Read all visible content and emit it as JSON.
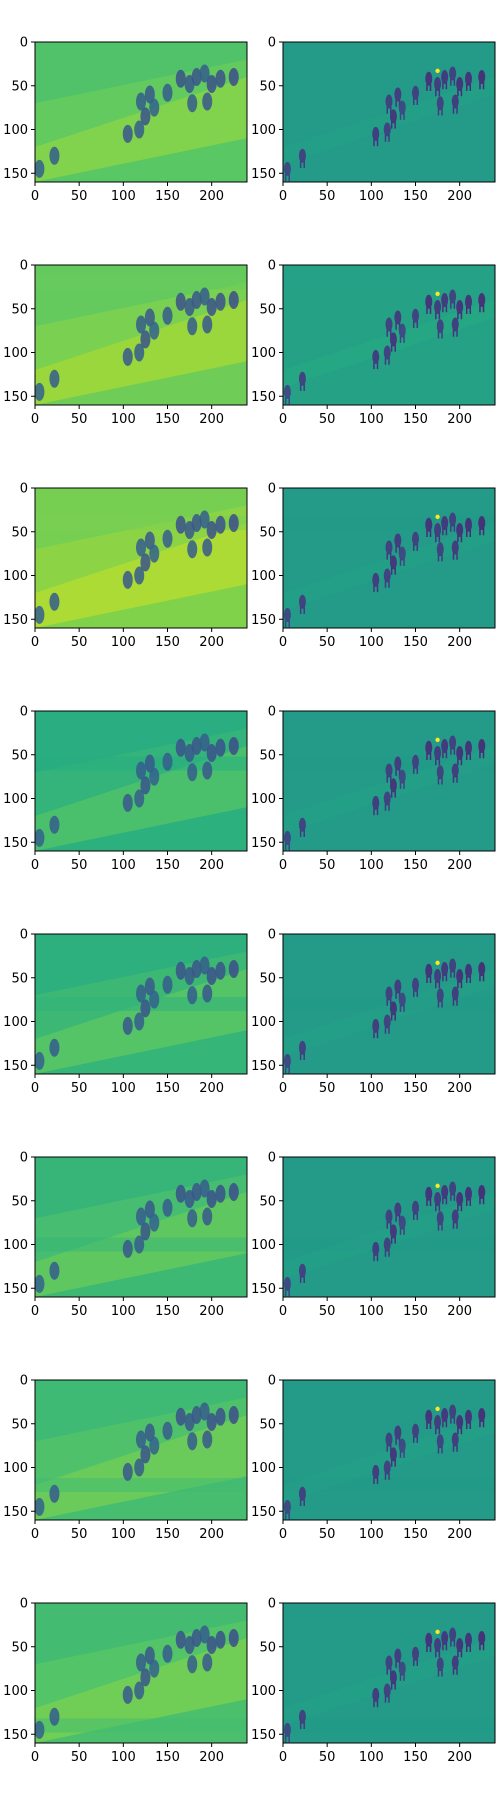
{
  "figure": {
    "rows": 8,
    "columns": 2
  },
  "chart_data": [
    {
      "type": "heatmap",
      "panel": "row-1-left",
      "colormap": "viridis",
      "mean_level": 0.76,
      "seam_row": null,
      "xlim": [
        0,
        240
      ],
      "ylim": [
        160,
        0
      ],
      "xticks": [
        0,
        50,
        100,
        150,
        200
      ],
      "yticks": [
        0,
        50,
        100,
        150
      ],
      "xtick_labels": [
        "0",
        "50",
        "100",
        "150",
        "200"
      ],
      "ytick_labels": [
        "0",
        "50",
        "100",
        "150"
      ]
    },
    {
      "type": "heatmap",
      "panel": "row-1-right",
      "colormap": "viridis",
      "mean_level": 0.55,
      "seam_row": null,
      "xlim": [
        0,
        240
      ],
      "ylim": [
        160,
        0
      ],
      "xticks": [
        0,
        50,
        100,
        150,
        200
      ],
      "yticks": [
        0,
        50,
        100,
        150
      ],
      "xtick_labels": [
        "0",
        "50",
        "100",
        "150",
        "200"
      ],
      "ytick_labels": [
        "0",
        "50",
        "100",
        "150"
      ]
    },
    {
      "type": "heatmap",
      "panel": "row-2-left",
      "colormap": "viridis",
      "mean_level": 0.8,
      "seam_row": 20,
      "xlim": [
        0,
        240
      ],
      "ylim": [
        160,
        0
      ],
      "xticks": [
        0,
        50,
        100,
        150,
        200
      ],
      "yticks": [
        0,
        50,
        100,
        150
      ],
      "xtick_labels": [
        "0",
        "50",
        "100",
        "150",
        "200"
      ],
      "ytick_labels": [
        "0",
        "50",
        "100",
        "150"
      ]
    },
    {
      "type": "heatmap",
      "panel": "row-2-right",
      "colormap": "viridis",
      "mean_level": 0.58,
      "seam_row": 20,
      "xlim": [
        0,
        240
      ],
      "ylim": [
        160,
        0
      ],
      "xticks": [
        0,
        50,
        100,
        150,
        200
      ],
      "yticks": [
        0,
        50,
        100,
        150
      ],
      "xtick_labels": [
        "0",
        "50",
        "100",
        "150",
        "200"
      ],
      "ytick_labels": [
        "0",
        "50",
        "100",
        "150"
      ]
    },
    {
      "type": "heatmap",
      "panel": "row-3-left",
      "colormap": "viridis",
      "mean_level": 0.83,
      "seam_row": 40,
      "xlim": [
        0,
        240
      ],
      "ylim": [
        160,
        0
      ],
      "xticks": [
        0,
        50,
        100,
        150,
        200
      ],
      "yticks": [
        0,
        50,
        100,
        150
      ],
      "xtick_labels": [
        "0",
        "50",
        "100",
        "150",
        "200"
      ],
      "ytick_labels": [
        "0",
        "50",
        "100",
        "150"
      ]
    },
    {
      "type": "heatmap",
      "panel": "row-3-right",
      "colormap": "viridis",
      "mean_level": 0.55,
      "seam_row": 40,
      "xlim": [
        0,
        240
      ],
      "ylim": [
        160,
        0
      ],
      "xticks": [
        0,
        50,
        100,
        150,
        200
      ],
      "yticks": [
        0,
        50,
        100,
        150
      ],
      "xtick_labels": [
        "0",
        "50",
        "100",
        "150",
        "200"
      ],
      "ytick_labels": [
        "0",
        "50",
        "100",
        "150"
      ]
    },
    {
      "type": "heatmap",
      "panel": "row-4-left",
      "colormap": "viridis",
      "mean_level": 0.66,
      "seam_row": 60,
      "xlim": [
        0,
        240
      ],
      "ylim": [
        160,
        0
      ],
      "xticks": [
        0,
        50,
        100,
        150,
        200
      ],
      "yticks": [
        0,
        50,
        100,
        150
      ],
      "xtick_labels": [
        "0",
        "50",
        "100",
        "150",
        "200"
      ],
      "ytick_labels": [
        "0",
        "50",
        "100",
        "150"
      ]
    },
    {
      "type": "heatmap",
      "panel": "row-4-right",
      "colormap": "viridis",
      "mean_level": 0.55,
      "seam_row": 60,
      "xlim": [
        0,
        240
      ],
      "ylim": [
        160,
        0
      ],
      "xticks": [
        0,
        50,
        100,
        150,
        200
      ],
      "yticks": [
        0,
        50,
        100,
        150
      ],
      "xtick_labels": [
        "0",
        "50",
        "100",
        "150",
        "200"
      ],
      "ytick_labels": [
        "0",
        "50",
        "100",
        "150"
      ]
    },
    {
      "type": "heatmap",
      "panel": "row-5-left",
      "colormap": "viridis",
      "mean_level": 0.68,
      "seam_row": 80,
      "xlim": [
        0,
        240
      ],
      "ylim": [
        160,
        0
      ],
      "xticks": [
        0,
        50,
        100,
        150,
        200
      ],
      "yticks": [
        0,
        50,
        100,
        150
      ],
      "xtick_labels": [
        "0",
        "50",
        "100",
        "150",
        "200"
      ],
      "ytick_labels": [
        "0",
        "50",
        "100",
        "150"
      ]
    },
    {
      "type": "heatmap",
      "panel": "row-5-right",
      "colormap": "viridis",
      "mean_level": 0.55,
      "seam_row": 80,
      "xlim": [
        0,
        240
      ],
      "ylim": [
        160,
        0
      ],
      "xticks": [
        0,
        50,
        100,
        150,
        200
      ],
      "yticks": [
        0,
        50,
        100,
        150
      ],
      "xtick_labels": [
        "0",
        "50",
        "100",
        "150",
        "200"
      ],
      "ytick_labels": [
        "0",
        "50",
        "100",
        "150"
      ]
    },
    {
      "type": "heatmap",
      "panel": "row-6-left",
      "colormap": "viridis",
      "mean_level": 0.7,
      "seam_row": 100,
      "xlim": [
        0,
        240
      ],
      "ylim": [
        160,
        0
      ],
      "xticks": [
        0,
        50,
        100,
        150,
        200
      ],
      "yticks": [
        0,
        50,
        100,
        150
      ],
      "xtick_labels": [
        "0",
        "50",
        "100",
        "150",
        "200"
      ],
      "ytick_labels": [
        "0",
        "50",
        "100",
        "150"
      ]
    },
    {
      "type": "heatmap",
      "panel": "row-6-right",
      "colormap": "viridis",
      "mean_level": 0.55,
      "seam_row": 100,
      "xlim": [
        0,
        240
      ],
      "ylim": [
        160,
        0
      ],
      "xticks": [
        0,
        50,
        100,
        150,
        200
      ],
      "yticks": [
        0,
        50,
        100,
        150
      ],
      "xtick_labels": [
        "0",
        "50",
        "100",
        "150",
        "200"
      ],
      "ytick_labels": [
        "0",
        "50",
        "100",
        "150"
      ]
    },
    {
      "type": "heatmap",
      "panel": "row-7-left",
      "colormap": "viridis",
      "mean_level": 0.72,
      "seam_row": 120,
      "xlim": [
        0,
        240
      ],
      "ylim": [
        160,
        0
      ],
      "xticks": [
        0,
        50,
        100,
        150,
        200
      ],
      "yticks": [
        0,
        50,
        100,
        150
      ],
      "xtick_labels": [
        "0",
        "50",
        "100",
        "150",
        "200"
      ],
      "ytick_labels": [
        "0",
        "50",
        "100",
        "150"
      ]
    },
    {
      "type": "heatmap",
      "panel": "row-7-right",
      "colormap": "viridis",
      "mean_level": 0.55,
      "seam_row": 120,
      "xlim": [
        0,
        240
      ],
      "ylim": [
        160,
        0
      ],
      "xticks": [
        0,
        50,
        100,
        150,
        200
      ],
      "yticks": [
        0,
        50,
        100,
        150
      ],
      "xtick_labels": [
        "0",
        "50",
        "100",
        "150",
        "200"
      ],
      "ytick_labels": [
        "0",
        "50",
        "100",
        "150"
      ]
    },
    {
      "type": "heatmap",
      "panel": "row-8-left",
      "colormap": "viridis",
      "mean_level": 0.73,
      "seam_row": 140,
      "xlim": [
        0,
        240
      ],
      "ylim": [
        160,
        0
      ],
      "xticks": [
        0,
        50,
        100,
        150,
        200
      ],
      "yticks": [
        0,
        50,
        100,
        150
      ],
      "xtick_labels": [
        "0",
        "50",
        "100",
        "150",
        "200"
      ],
      "ytick_labels": [
        "0",
        "50",
        "100",
        "150"
      ]
    },
    {
      "type": "heatmap",
      "panel": "row-8-right",
      "colormap": "viridis",
      "mean_level": 0.55,
      "seam_row": 140,
      "xlim": [
        0,
        240
      ],
      "ylim": [
        160,
        0
      ],
      "xticks": [
        0,
        50,
        100,
        150,
        200
      ],
      "yticks": [
        0,
        50,
        100,
        150
      ],
      "xtick_labels": [
        "0",
        "50",
        "100",
        "150",
        "200"
      ],
      "ytick_labels": [
        "0",
        "50",
        "100",
        "150"
      ]
    }
  ],
  "blobs": [
    [
      105,
      105,
      0.28
    ],
    [
      118,
      100,
      0.3
    ],
    [
      125,
      85,
      0.26
    ],
    [
      120,
      68,
      0.3
    ],
    [
      130,
      60,
      0.28
    ],
    [
      135,
      75,
      0.32
    ],
    [
      150,
      58,
      0.3
    ],
    [
      165,
      42,
      0.25
    ],
    [
      175,
      48,
      0.28
    ],
    [
      183,
      40,
      0.27
    ],
    [
      192,
      36,
      0.3
    ],
    [
      200,
      48,
      0.25
    ],
    [
      210,
      42,
      0.25
    ],
    [
      178,
      70,
      0.3
    ],
    [
      195,
      68,
      0.28
    ],
    [
      22,
      130,
      0.3
    ],
    [
      5,
      145,
      0.32
    ],
    [
      225,
      40,
      0.24
    ]
  ],
  "colors": {
    "background": "#ffffff",
    "axis": "#000000",
    "tick_text": "#000000"
  }
}
